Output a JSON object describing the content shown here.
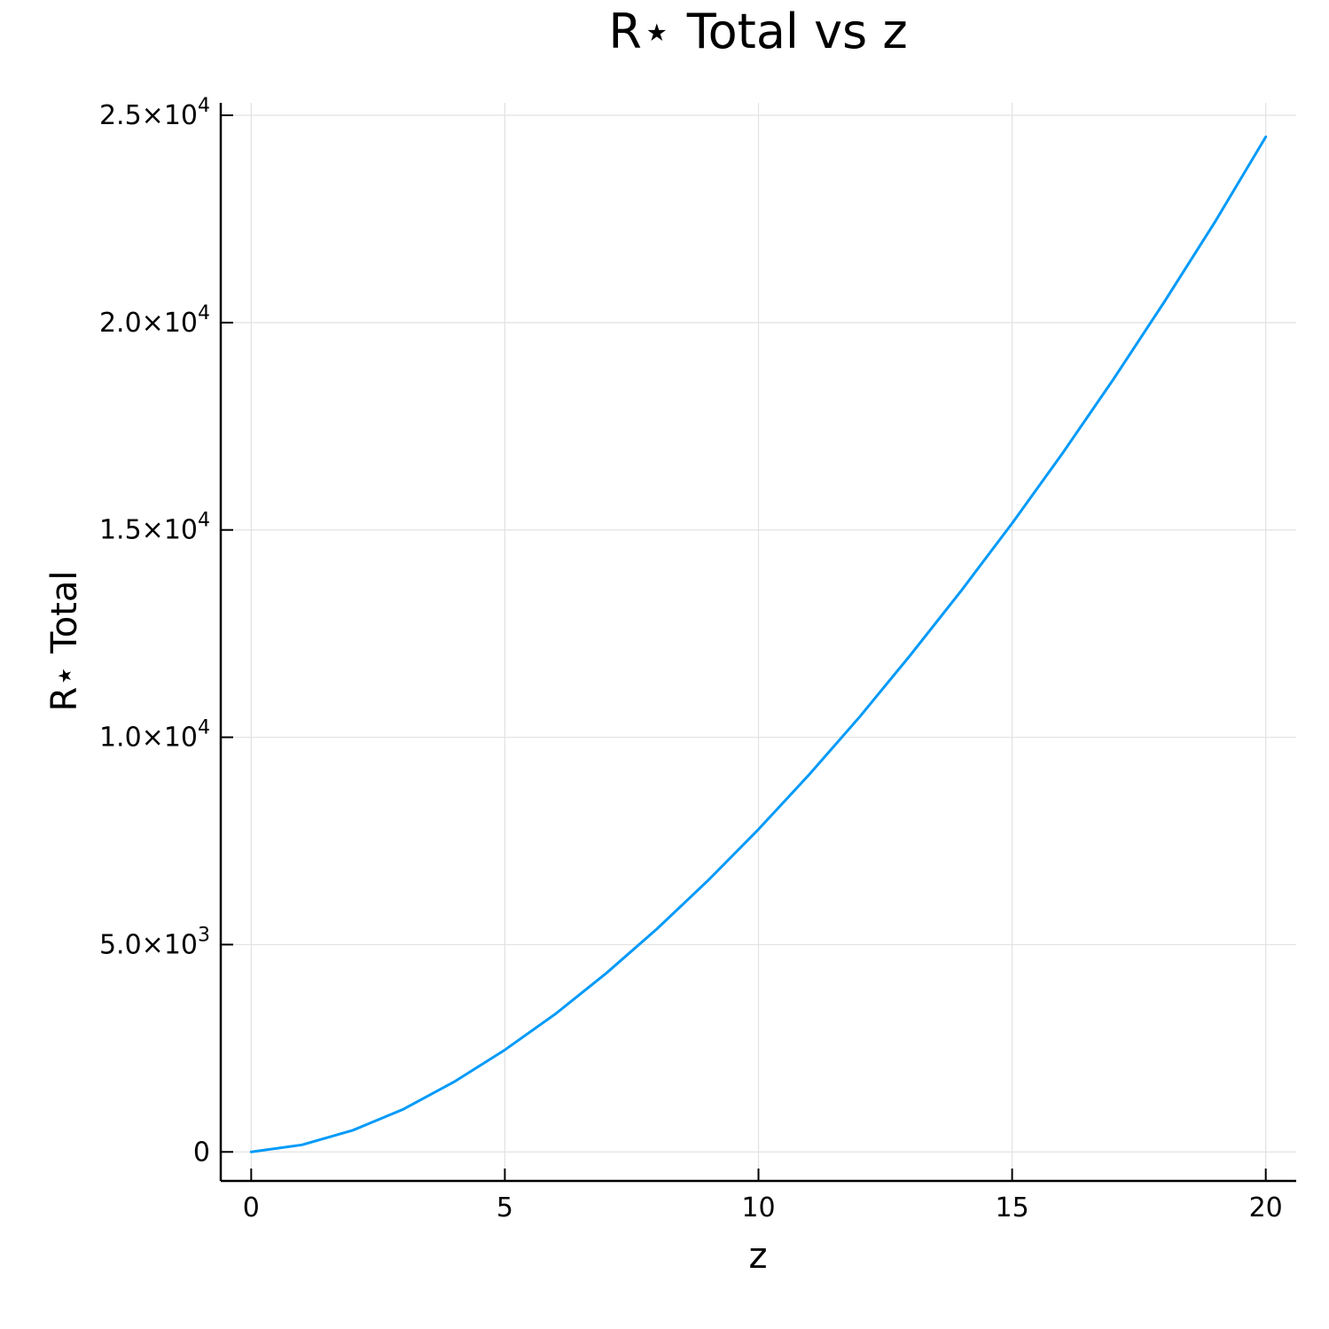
{
  "chart_data": {
    "type": "line",
    "title": "R⋆ Total vs z",
    "xlabel": "z",
    "ylabel": "R⋆ Total",
    "xlim": [
      -0.6,
      20.6
    ],
    "ylim": [
      -700,
      25300
    ],
    "grid": true,
    "legend": "none",
    "x_ticks": [
      {
        "value": 0,
        "label": "0"
      },
      {
        "value": 5,
        "label": "5"
      },
      {
        "value": 10,
        "label": "10"
      },
      {
        "value": 15,
        "label": "15"
      },
      {
        "value": 20,
        "label": "20"
      }
    ],
    "y_ticks": [
      {
        "value": 0,
        "mantissa": "0",
        "exponent": ""
      },
      {
        "value": 5000,
        "mantissa": "5.0×10",
        "exponent": "3"
      },
      {
        "value": 10000,
        "mantissa": "1.0×10",
        "exponent": "4"
      },
      {
        "value": 15000,
        "mantissa": "1.5×10",
        "exponent": "4"
      },
      {
        "value": 20000,
        "mantissa": "2.0×10",
        "exponent": "4"
      },
      {
        "value": 25000,
        "mantissa": "2.5×10",
        "exponent": "4"
      }
    ],
    "series": [
      {
        "color": "#009af9",
        "x": [
          0,
          1,
          2,
          3,
          4,
          5,
          6,
          7,
          8,
          9,
          10,
          11,
          12,
          13,
          14,
          15,
          16,
          17,
          18,
          19,
          20
        ],
        "y": [
          0,
          170,
          520,
          1030,
          1690,
          2460,
          3330,
          4310,
          5380,
          6540,
          7780,
          9100,
          10500,
          11990,
          13540,
          15160,
          16860,
          18640,
          20500,
          22430,
          24480
        ]
      }
    ]
  }
}
